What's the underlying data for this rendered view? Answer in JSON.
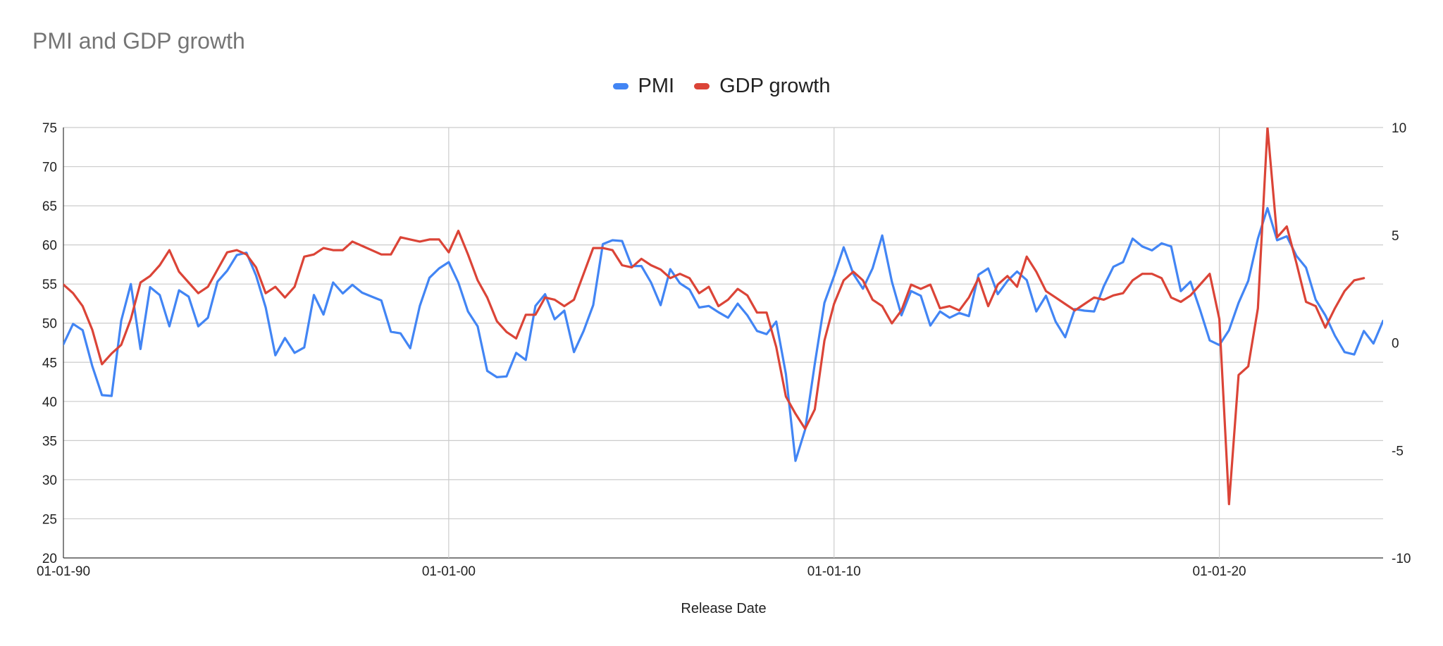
{
  "chart_data": {
    "type": "line",
    "title": "PMI and GDP growth",
    "xlabel": "Release Date",
    "ylabel": "",
    "ylabel_right": "",
    "x_range": [
      1990.0,
      2024.25
    ],
    "ylim": [
      20,
      75
    ],
    "ylim_right": [
      -10,
      10
    ],
    "y_ticks": [
      75,
      70,
      65,
      60,
      55,
      50,
      45,
      40,
      35,
      30,
      25,
      20
    ],
    "y_ticks_right": [
      10,
      5,
      0,
      -5,
      -10
    ],
    "x_ticks": [
      {
        "label": "01-01-90",
        "x": 1990
      },
      {
        "label": "01-01-00",
        "x": 2000
      },
      {
        "label": "01-01-10",
        "x": 2010
      },
      {
        "label": "01-01-20",
        "x": 2020
      }
    ],
    "grid": true,
    "legend_position": "top-center",
    "series": [
      {
        "name": "PMI",
        "color": "#4285f4",
        "axis": "left",
        "points": [
          [
            1990.0,
            47.3
          ],
          [
            1990.25,
            49.9
          ],
          [
            1990.5,
            49.1
          ],
          [
            1990.75,
            44.5
          ],
          [
            1991.0,
            40.8
          ],
          [
            1991.25,
            40.7
          ],
          [
            1991.5,
            50.3
          ],
          [
            1991.75,
            55.0
          ],
          [
            1992.0,
            46.7
          ],
          [
            1992.25,
            54.6
          ],
          [
            1992.5,
            53.6
          ],
          [
            1992.75,
            49.6
          ],
          [
            1993.0,
            54.2
          ],
          [
            1993.25,
            53.4
          ],
          [
            1993.5,
            49.6
          ],
          [
            1993.75,
            50.7
          ],
          [
            1994.0,
            55.3
          ],
          [
            1994.25,
            56.7
          ],
          [
            1994.5,
            58.7
          ],
          [
            1994.75,
            59.0
          ],
          [
            1995.0,
            56.1
          ],
          [
            1995.25,
            52.0
          ],
          [
            1995.5,
            45.9
          ],
          [
            1995.75,
            48.1
          ],
          [
            1996.0,
            46.2
          ],
          [
            1996.25,
            46.9
          ],
          [
            1996.5,
            53.6
          ],
          [
            1996.75,
            51.1
          ],
          [
            1997.0,
            55.2
          ],
          [
            1997.25,
            53.8
          ],
          [
            1997.5,
            54.9
          ],
          [
            1997.75,
            53.9
          ],
          [
            1998.0,
            53.4
          ],
          [
            1998.25,
            52.9
          ],
          [
            1998.5,
            48.9
          ],
          [
            1998.75,
            48.7
          ],
          [
            1999.0,
            46.8
          ],
          [
            1999.25,
            52.2
          ],
          [
            1999.5,
            55.8
          ],
          [
            1999.75,
            57.0
          ],
          [
            2000.0,
            57.8
          ],
          [
            2000.25,
            55.2
          ],
          [
            2000.5,
            51.5
          ],
          [
            2000.75,
            49.6
          ],
          [
            2001.0,
            43.9
          ],
          [
            2001.25,
            43.1
          ],
          [
            2001.5,
            43.2
          ],
          [
            2001.75,
            46.2
          ],
          [
            2002.0,
            45.3
          ],
          [
            2002.25,
            52.2
          ],
          [
            2002.5,
            53.7
          ],
          [
            2002.75,
            50.5
          ],
          [
            2003.0,
            51.6
          ],
          [
            2003.25,
            46.3
          ],
          [
            2003.5,
            49.0
          ],
          [
            2003.75,
            52.3
          ],
          [
            2004.0,
            60.1
          ],
          [
            2004.25,
            60.6
          ],
          [
            2004.5,
            60.5
          ],
          [
            2004.75,
            57.3
          ],
          [
            2005.0,
            57.3
          ],
          [
            2005.25,
            55.2
          ],
          [
            2005.5,
            52.3
          ],
          [
            2005.75,
            56.9
          ],
          [
            2006.0,
            55.1
          ],
          [
            2006.25,
            54.3
          ],
          [
            2006.5,
            52.0
          ],
          [
            2006.75,
            52.2
          ],
          [
            2007.0,
            51.4
          ],
          [
            2007.25,
            50.7
          ],
          [
            2007.5,
            52.5
          ],
          [
            2007.75,
            51.0
          ],
          [
            2008.0,
            49.0
          ],
          [
            2008.25,
            48.6
          ],
          [
            2008.5,
            50.2
          ],
          [
            2008.75,
            43.5
          ],
          [
            2009.0,
            32.4
          ],
          [
            2009.25,
            36.4
          ],
          [
            2009.5,
            44.8
          ],
          [
            2009.75,
            52.6
          ],
          [
            2010.0,
            56.0
          ],
          [
            2010.25,
            59.7
          ],
          [
            2010.5,
            56.3
          ],
          [
            2010.75,
            54.4
          ],
          [
            2011.0,
            57.0
          ],
          [
            2011.25,
            61.2
          ],
          [
            2011.5,
            55.3
          ],
          [
            2011.75,
            51.0
          ],
          [
            2012.0,
            54.1
          ],
          [
            2012.25,
            53.5
          ],
          [
            2012.5,
            49.7
          ],
          [
            2012.75,
            51.5
          ],
          [
            2013.0,
            50.7
          ],
          [
            2013.25,
            51.3
          ],
          [
            2013.5,
            50.9
          ],
          [
            2013.75,
            56.2
          ],
          [
            2014.0,
            57.0
          ],
          [
            2014.25,
            53.7
          ],
          [
            2014.5,
            55.4
          ],
          [
            2014.75,
            56.6
          ],
          [
            2015.0,
            55.5
          ],
          [
            2015.25,
            51.5
          ],
          [
            2015.5,
            53.5
          ],
          [
            2015.75,
            50.2
          ],
          [
            2016.0,
            48.2
          ],
          [
            2016.25,
            51.8
          ],
          [
            2016.5,
            51.6
          ],
          [
            2016.75,
            51.5
          ],
          [
            2017.0,
            54.7
          ],
          [
            2017.25,
            57.2
          ],
          [
            2017.5,
            57.8
          ],
          [
            2017.75,
            60.8
          ],
          [
            2018.0,
            59.8
          ],
          [
            2018.25,
            59.3
          ],
          [
            2018.5,
            60.2
          ],
          [
            2018.75,
            59.8
          ],
          [
            2019.0,
            54.1
          ],
          [
            2019.25,
            55.3
          ],
          [
            2019.5,
            51.7
          ],
          [
            2019.75,
            47.8
          ],
          [
            2020.0,
            47.2
          ],
          [
            2020.25,
            49.1
          ],
          [
            2020.5,
            52.6
          ],
          [
            2020.75,
            55.4
          ],
          [
            2021.0,
            60.8
          ],
          [
            2021.25,
            64.7
          ],
          [
            2021.5,
            60.6
          ],
          [
            2021.75,
            61.1
          ],
          [
            2022.0,
            58.6
          ],
          [
            2022.25,
            57.1
          ],
          [
            2022.5,
            53.0
          ],
          [
            2022.75,
            51.0
          ],
          [
            2023.0,
            48.4
          ],
          [
            2023.25,
            46.3
          ],
          [
            2023.5,
            46.0
          ],
          [
            2023.75,
            49.0
          ],
          [
            2024.0,
            47.4
          ],
          [
            2024.25,
            50.3
          ]
        ]
      },
      {
        "name": "GDP growth",
        "color": "#db4437",
        "axis": "right",
        "points": [
          [
            1990.0,
            2.7
          ],
          [
            1990.25,
            2.3
          ],
          [
            1990.5,
            1.7
          ],
          [
            1990.75,
            0.6
          ],
          [
            1991.0,
            -1.0
          ],
          [
            1991.25,
            -0.5
          ],
          [
            1991.5,
            -0.1
          ],
          [
            1991.75,
            1.1
          ],
          [
            1992.0,
            2.8
          ],
          [
            1992.25,
            3.1
          ],
          [
            1992.5,
            3.6
          ],
          [
            1992.75,
            4.3
          ],
          [
            1993.0,
            3.3
          ],
          [
            1993.25,
            2.8
          ],
          [
            1993.5,
            2.3
          ],
          [
            1993.75,
            2.6
          ],
          [
            1994.0,
            3.4
          ],
          [
            1994.25,
            4.2
          ],
          [
            1994.5,
            4.3
          ],
          [
            1994.75,
            4.1
          ],
          [
            1995.0,
            3.5
          ],
          [
            1995.25,
            2.3
          ],
          [
            1995.5,
            2.6
          ],
          [
            1995.75,
            2.1
          ],
          [
            1996.0,
            2.6
          ],
          [
            1996.25,
            4.0
          ],
          [
            1996.5,
            4.1
          ],
          [
            1996.75,
            4.4
          ],
          [
            1997.0,
            4.3
          ],
          [
            1997.25,
            4.3
          ],
          [
            1997.5,
            4.7
          ],
          [
            1997.75,
            4.5
          ],
          [
            1998.0,
            4.3
          ],
          [
            1998.25,
            4.1
          ],
          [
            1998.5,
            4.1
          ],
          [
            1998.75,
            4.9
          ],
          [
            1999.0,
            4.8
          ],
          [
            1999.25,
            4.7
          ],
          [
            1999.5,
            4.8
          ],
          [
            1999.75,
            4.8
          ],
          [
            2000.0,
            4.2
          ],
          [
            2000.25,
            5.2
          ],
          [
            2000.5,
            4.1
          ],
          [
            2000.75,
            2.9
          ],
          [
            2001.0,
            2.1
          ],
          [
            2001.25,
            1.0
          ],
          [
            2001.5,
            0.5
          ],
          [
            2001.75,
            0.2
          ],
          [
            2002.0,
            1.3
          ],
          [
            2002.25,
            1.3
          ],
          [
            2002.5,
            2.1
          ],
          [
            2002.75,
            2.0
          ],
          [
            2003.0,
            1.7
          ],
          [
            2003.25,
            2.0
          ],
          [
            2003.5,
            3.2
          ],
          [
            2003.75,
            4.4
          ],
          [
            2004.0,
            4.4
          ],
          [
            2004.25,
            4.3
          ],
          [
            2004.5,
            3.6
          ],
          [
            2004.75,
            3.5
          ],
          [
            2005.0,
            3.9
          ],
          [
            2005.25,
            3.6
          ],
          [
            2005.5,
            3.4
          ],
          [
            2005.75,
            3.0
          ],
          [
            2006.0,
            3.2
          ],
          [
            2006.25,
            3.0
          ],
          [
            2006.5,
            2.3
          ],
          [
            2006.75,
            2.6
          ],
          [
            2007.0,
            1.7
          ],
          [
            2007.25,
            2.0
          ],
          [
            2007.5,
            2.5
          ],
          [
            2007.75,
            2.2
          ],
          [
            2008.0,
            1.4
          ],
          [
            2008.25,
            1.4
          ],
          [
            2008.5,
            -0.2
          ],
          [
            2008.75,
            -2.5
          ],
          [
            2009.0,
            -3.3
          ],
          [
            2009.25,
            -4.0
          ],
          [
            2009.5,
            -3.1
          ],
          [
            2009.75,
            0.1
          ],
          [
            2010.0,
            1.8
          ],
          [
            2010.25,
            2.9
          ],
          [
            2010.5,
            3.3
          ],
          [
            2010.75,
            2.9
          ],
          [
            2011.0,
            2.0
          ],
          [
            2011.25,
            1.7
          ],
          [
            2011.5,
            0.9
          ],
          [
            2011.75,
            1.5
          ],
          [
            2012.0,
            2.7
          ],
          [
            2012.25,
            2.5
          ],
          [
            2012.5,
            2.7
          ],
          [
            2012.75,
            1.6
          ],
          [
            2013.0,
            1.7
          ],
          [
            2013.25,
            1.5
          ],
          [
            2013.5,
            2.1
          ],
          [
            2013.75,
            3.0
          ],
          [
            2014.0,
            1.7
          ],
          [
            2014.25,
            2.7
          ],
          [
            2014.5,
            3.1
          ],
          [
            2014.75,
            2.6
          ],
          [
            2015.0,
            4.0
          ],
          [
            2015.25,
            3.3
          ],
          [
            2015.5,
            2.4
          ],
          [
            2015.75,
            2.1
          ],
          [
            2016.0,
            1.8
          ],
          [
            2016.25,
            1.5
          ],
          [
            2016.5,
            1.8
          ],
          [
            2016.75,
            2.1
          ],
          [
            2017.0,
            2.0
          ],
          [
            2017.25,
            2.2
          ],
          [
            2017.5,
            2.3
          ],
          [
            2017.75,
            2.9
          ],
          [
            2018.0,
            3.2
          ],
          [
            2018.25,
            3.2
          ],
          [
            2018.5,
            3.0
          ],
          [
            2018.75,
            2.1
          ],
          [
            2019.0,
            1.9
          ],
          [
            2019.25,
            2.2
          ],
          [
            2019.5,
            2.7
          ],
          [
            2019.75,
            3.2
          ],
          [
            2020.0,
            1.1
          ],
          [
            2020.25,
            -7.5
          ],
          [
            2020.5,
            -1.5
          ],
          [
            2020.75,
            -1.1
          ],
          [
            2021.0,
            1.6
          ],
          [
            2021.25,
            10.0
          ],
          [
            2021.5,
            4.9
          ],
          [
            2021.75,
            5.4
          ],
          [
            2022.0,
            3.7
          ],
          [
            2022.25,
            1.9
          ],
          [
            2022.5,
            1.7
          ],
          [
            2022.75,
            0.7
          ],
          [
            2023.0,
            1.6
          ],
          [
            2023.25,
            2.4
          ],
          [
            2023.5,
            2.9
          ],
          [
            2023.75,
            3.0
          ]
        ]
      }
    ]
  }
}
